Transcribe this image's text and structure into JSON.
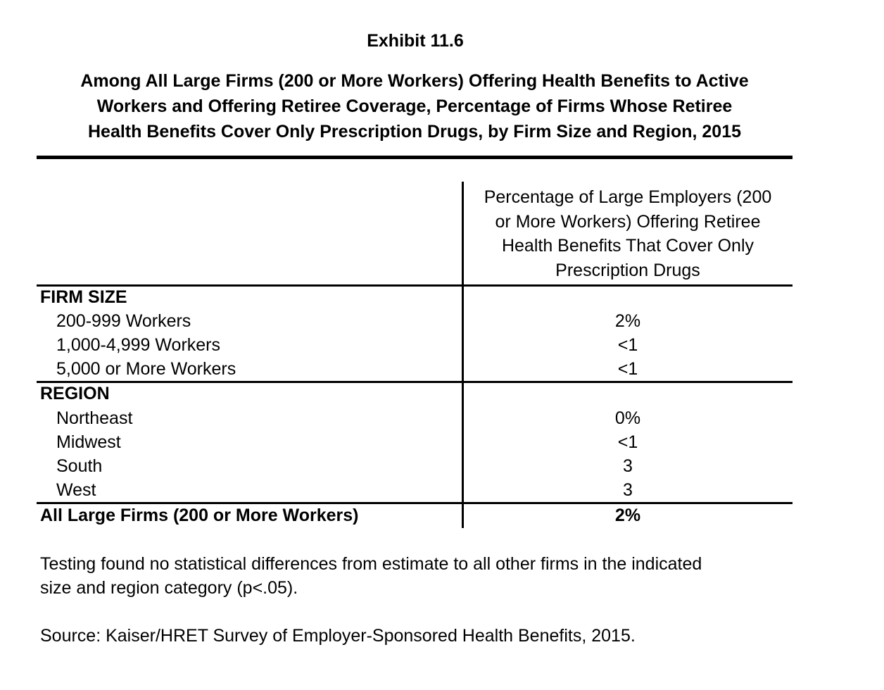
{
  "exhibit": "Exhibit 11.6",
  "title_lines": [
    "Among All Large Firms (200 or More Workers) Offering Health Benefits to Active",
    "Workers and Offering Retiree Coverage, Percentage of Firms Whose Retiree",
    "Health Benefits Cover Only Prescription Drugs, by Firm Size and Region, 2015"
  ],
  "column_header_lines": [
    "Percentage of Large Employers (200",
    "or More Workers) Offering Retiree",
    "Health Benefits That Cover Only",
    "Prescription Drugs"
  ],
  "sections": [
    {
      "heading": "FIRM SIZE",
      "rows": [
        {
          "label": "200-999 Workers",
          "value": "2%"
        },
        {
          "label": "1,000-4,999 Workers",
          "value": "<1"
        },
        {
          "label": "5,000 or More Workers",
          "value": "<1"
        }
      ]
    },
    {
      "heading": "REGION",
      "rows": [
        {
          "label": "Northeast",
          "value": "0%"
        },
        {
          "label": "Midwest",
          "value": "<1"
        },
        {
          "label": "South",
          "value": "3"
        },
        {
          "label": "West",
          "value": "3"
        }
      ]
    }
  ],
  "total": {
    "label": "All Large Firms (200 or More Workers)",
    "value": "2%"
  },
  "note_lines": [
    "Testing found no statistical differences from estimate to all other firms in the indicated",
    "size and region category (p<.05)."
  ],
  "source": "Source: Kaiser/HRET Survey of Employer-Sponsored Health Benefits, 2015."
}
